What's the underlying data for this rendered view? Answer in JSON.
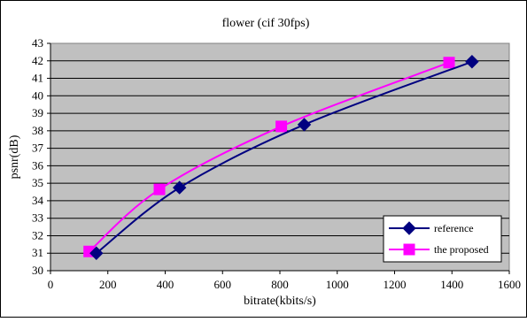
{
  "chart_data": {
    "type": "line",
    "title": "flower (cif 30fps)",
    "xlabel": "bitrate(kbits/s)",
    "ylabel": "psnr(dB)",
    "xlim": [
      0,
      1600
    ],
    "ylim": [
      30,
      43
    ],
    "x_ticks": [
      "0",
      "200",
      "400",
      "600",
      "800",
      "1000",
      "1200",
      "1400",
      "1600"
    ],
    "y_ticks": [
      "30",
      "31",
      "32",
      "33",
      "34",
      "35",
      "36",
      "37",
      "38",
      "39",
      "40",
      "41",
      "42",
      "43"
    ],
    "grid": "horizontal",
    "legend_position": "bottom-right",
    "series": [
      {
        "name": "reference",
        "color": "#000080",
        "marker": "diamond",
        "x": [
          160,
          450,
          885,
          1470
        ],
        "y": [
          31.0,
          34.75,
          38.35,
          41.95
        ]
      },
      {
        "name": "the proposed",
        "color": "#ff00ff",
        "marker": "square",
        "x": [
          135,
          380,
          805,
          1390
        ],
        "y": [
          31.1,
          34.65,
          38.25,
          41.9
        ]
      }
    ]
  }
}
